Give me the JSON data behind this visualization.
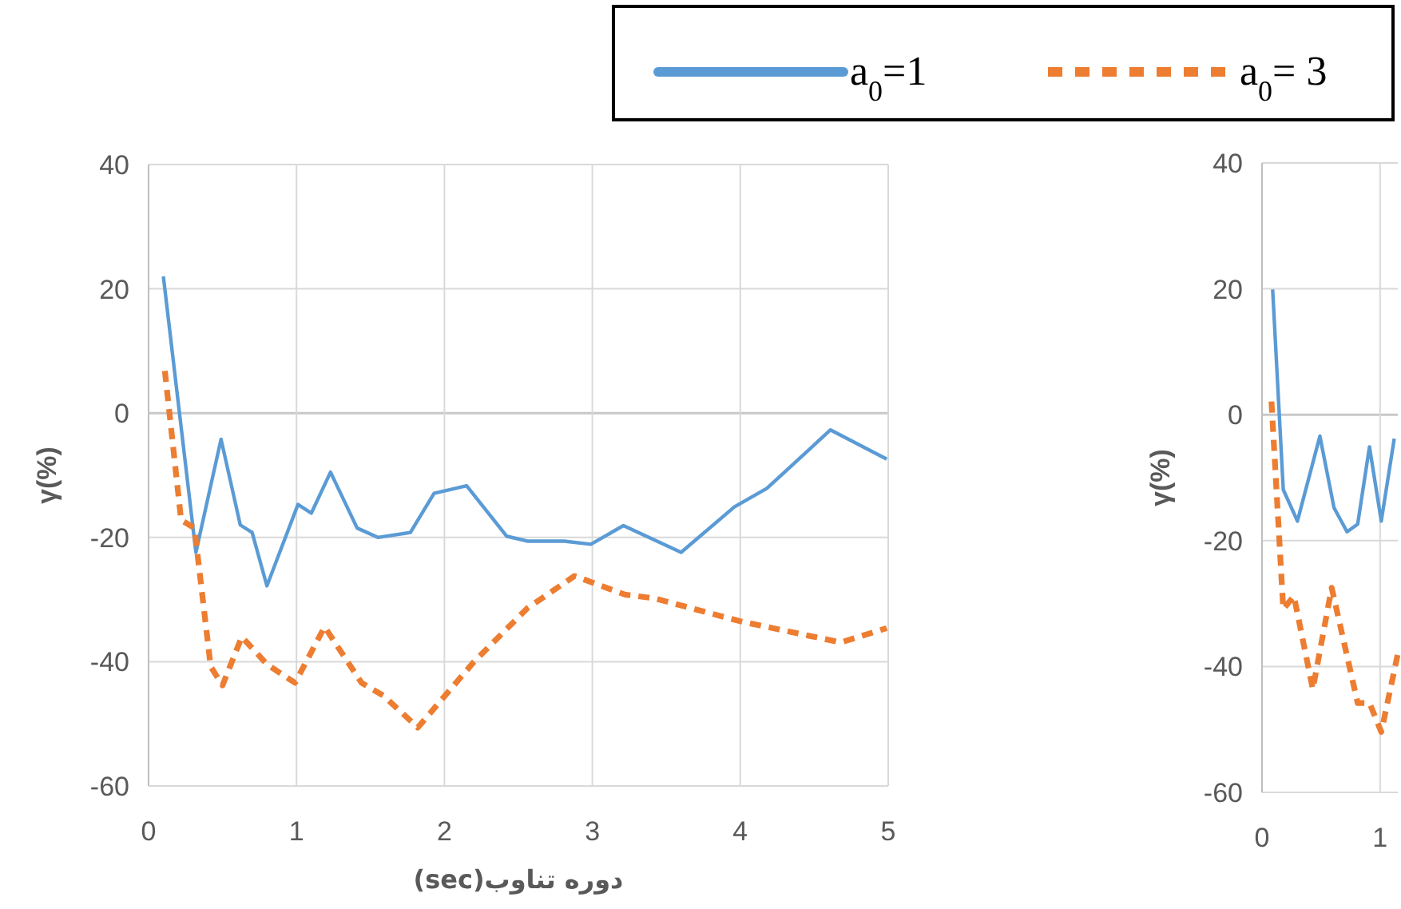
{
  "chart_data": [
    {
      "type": "line",
      "xlabel": "دوره تناوب(sec)",
      "ylabel": "γ(%)",
      "xlim": [
        0,
        5
      ],
      "ylim": [
        -60,
        40
      ],
      "xticks": [
        0,
        1,
        2,
        3,
        4,
        5
      ],
      "yticks": [
        -60,
        -40,
        -20,
        0,
        20,
        40
      ],
      "grid": true,
      "legend": "top",
      "series": [
        {
          "name": "a$_{0}$=1",
          "color": "#5b9bd5",
          "line_style": "solid",
          "x": [
            0.1,
            0.32,
            0.49,
            0.62,
            0.7,
            0.8,
            1.01,
            1.1,
            1.23,
            1.41,
            1.55,
            1.77,
            1.93,
            2.15,
            2.42,
            2.56,
            2.81,
            2.99,
            3.21,
            3.6,
            3.96,
            4.18,
            4.61,
            4.99
          ],
          "values": [
            22,
            -22.4,
            -4.2,
            -18,
            -19.2,
            -27.8,
            -14.7,
            -16.1,
            -9.5,
            -18.5,
            -20,
            -19.2,
            -12.9,
            -11.7,
            -19.8,
            -20.6,
            -20.6,
            -21.1,
            -18.1,
            -22.4,
            -15.1,
            -12.1,
            -2.7,
            -7.4
          ]
        },
        {
          "name": "a$_{0}$= 3",
          "color": "#ed7d31",
          "line_style": "dashed",
          "x": [
            0.11,
            0.22,
            0.31,
            0.42,
            0.5,
            0.63,
            0.8,
            0.99,
            1.19,
            1.44,
            1.59,
            1.82,
            2.2,
            2.56,
            2.88,
            3.22,
            3.42,
            4.0,
            4.68,
            4.99
          ],
          "values": [
            6.8,
            -17.2,
            -18.5,
            -40.8,
            -43.8,
            -36,
            -40.4,
            -43.4,
            -34.4,
            -43.4,
            -45.5,
            -50.6,
            -40,
            -31.4,
            -26.2,
            -29.2,
            -29.8,
            -33.5,
            -36.9,
            -34.6
          ]
        }
      ]
    },
    {
      "type": "line",
      "ylabel": "γ(%)",
      "xlim": [
        0,
        1.15
      ],
      "ylim": [
        -60,
        40
      ],
      "xticks": [
        0,
        1
      ],
      "yticks": [
        -60,
        -40,
        -20,
        0,
        20,
        40
      ],
      "grid": true,
      "series": [
        {
          "color": "#5b9bd5",
          "line_style": "solid",
          "x": [
            0.09,
            0.18,
            0.3,
            0.49,
            0.61,
            0.72,
            0.81,
            0.91,
            1.01,
            1.12
          ],
          "values": [
            19.9,
            -11.9,
            -16.9,
            -3.4,
            -14.8,
            -18.6,
            -17.4,
            -5.1,
            -16.9,
            -3.8
          ]
        },
        {
          "color": "#ed7d31",
          "line_style": "dashed",
          "x": [
            0.08,
            0.18,
            0.27,
            0.43,
            0.59,
            0.81,
            0.91,
            1.01,
            1.15
          ],
          "values": [
            2.1,
            -30.9,
            -28.8,
            -43.6,
            -27.5,
            -45.8,
            -45.8,
            -50.4,
            -38
          ]
        }
      ]
    }
  ]
}
